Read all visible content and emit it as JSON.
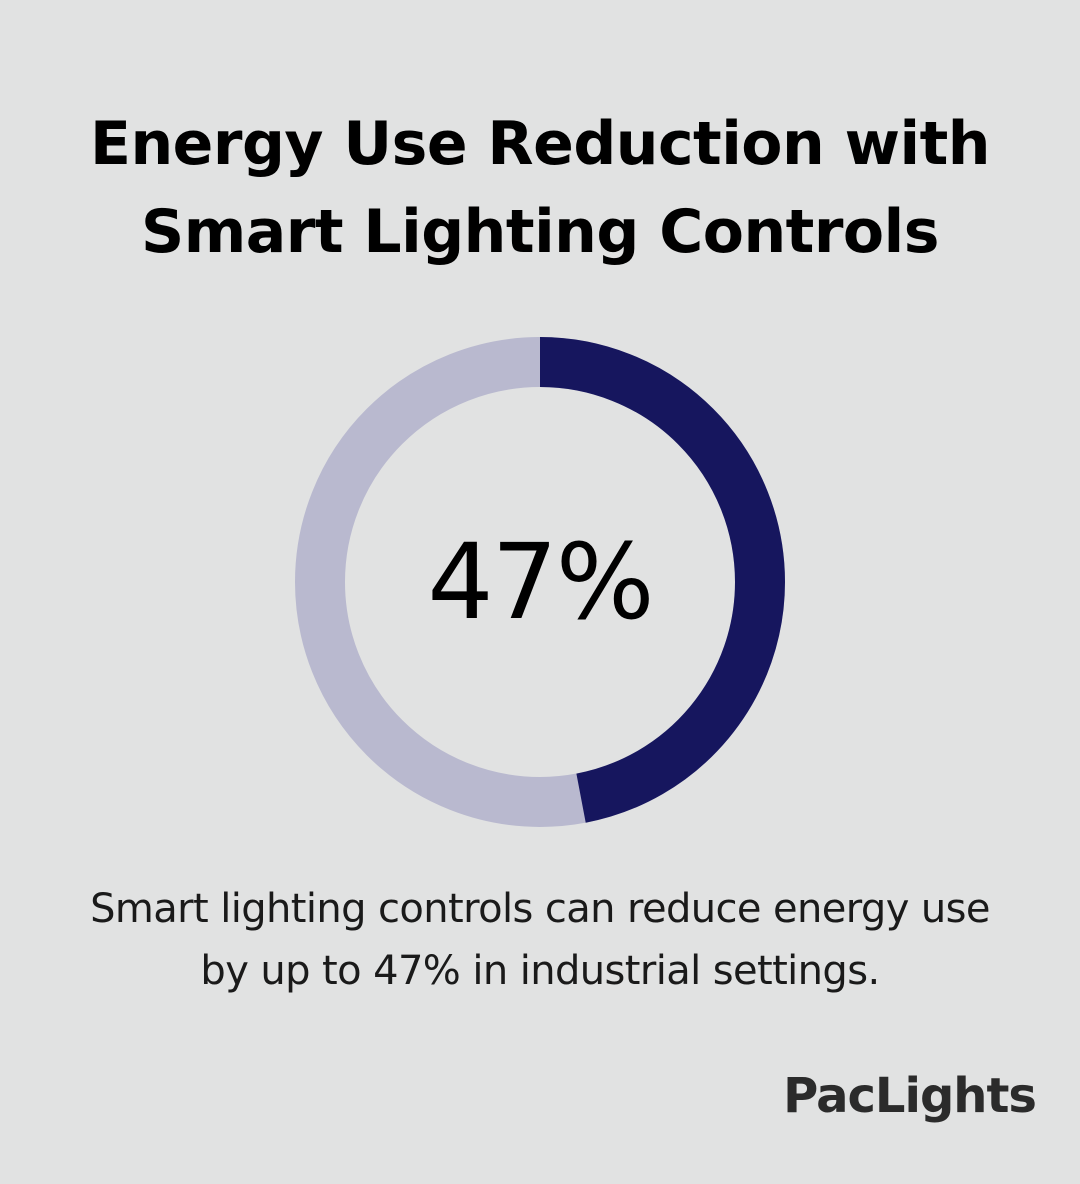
{
  "chart_data": {
    "type": "pie",
    "title": "Energy Use Reduction with Smart Lighting Controls",
    "title_lines": [
      "Energy Use Reduction with",
      "Smart Lighting Controls"
    ],
    "values": [
      47,
      53
    ],
    "center_label": "47%",
    "colors": {
      "highlight": "#16165e",
      "remainder": "#b9b9cf",
      "background": "#e1e2e2"
    },
    "caption_lines": [
      "Smart lighting controls can reduce energy use",
      "by up to 47% in industrial settings."
    ]
  },
  "brand": {
    "logo_text": "PacLights"
  }
}
